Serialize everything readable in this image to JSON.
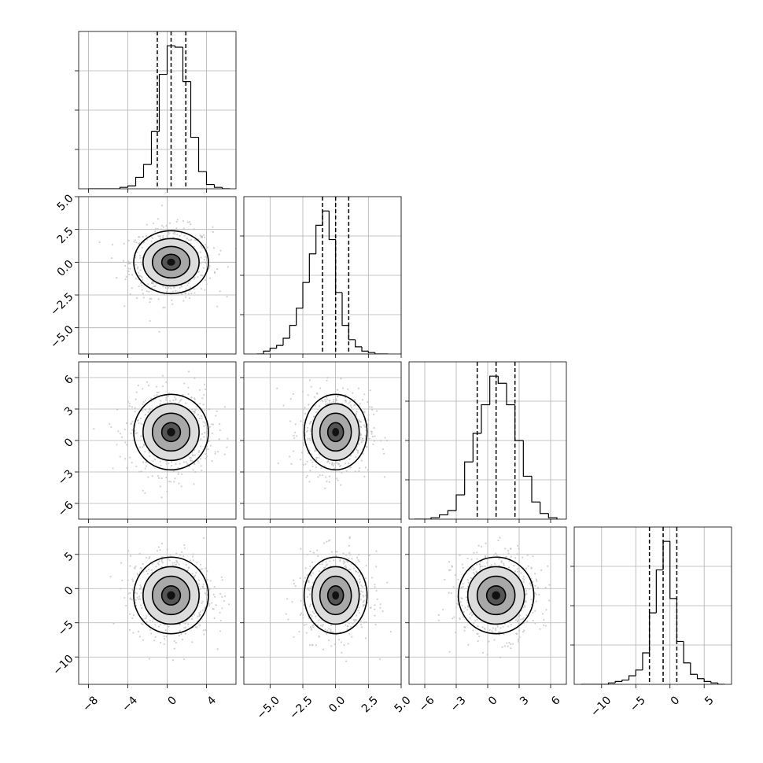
{
  "chart_data": {
    "type": "corner",
    "dimensions": 4,
    "grid": true,
    "colors": {
      "line": "#000000",
      "grid": "#b0b0b0",
      "scatter": "#bdbdbd"
    },
    "params": [
      {
        "range": [
          -9,
          7
        ],
        "ticks": [
          -8,
          -4,
          0,
          4
        ],
        "tick_labels": [
          "−8",
          "−4",
          "0",
          "4"
        ],
        "hist_edges": [
          -8,
          -7.2,
          -6.4,
          -5.6,
          -4.8,
          -4,
          -3.2,
          -2.4,
          -1.6,
          -0.8,
          0,
          0.8,
          1.6,
          2.4,
          3.2,
          4,
          4.8,
          5.6,
          6.4
        ],
        "hist_values": [
          0,
          0,
          0,
          0,
          1,
          2,
          8,
          17,
          40,
          80,
          100,
          99,
          75,
          36,
          12,
          3,
          1,
          0
        ],
        "quantiles": [
          -1.0,
          0.4,
          1.9
        ],
        "center": 0.4,
        "spread": 1.9
      },
      {
        "range": [
          -7,
          5
        ],
        "ticks": [
          -5,
          -2.5,
          0,
          2.5,
          5
        ],
        "tick_labels": [
          "−5.0",
          "−2.5",
          "0.0",
          "2.5",
          "5.0"
        ],
        "hist_edges": [
          -6,
          -5.5,
          -5,
          -4.5,
          -4,
          -3.5,
          -3,
          -2.5,
          -2,
          -1.5,
          -1,
          -0.5,
          0,
          0.5,
          1,
          1.5,
          2,
          2.5,
          3,
          3.5,
          4
        ],
        "hist_values": [
          0,
          2,
          4,
          6,
          11,
          20,
          32,
          50,
          70,
          90,
          100,
          80,
          43,
          20,
          10,
          5,
          2,
          1,
          0,
          0
        ],
        "quantiles": [
          -1.0,
          0.0,
          1.0
        ],
        "center": 0.0,
        "spread": 1.2
      },
      {
        "range": [
          -7.5,
          7.5
        ],
        "ticks": [
          -6,
          -3,
          0,
          3,
          6
        ],
        "tick_labels": [
          "−6",
          "−3",
          "0",
          "3",
          "6"
        ],
        "hist_edges": [
          -7,
          -6.2,
          -5.4,
          -4.6,
          -3.8,
          -3,
          -2.2,
          -1.4,
          -0.6,
          0.2,
          1,
          1.8,
          2.6,
          3.4,
          4.2,
          5,
          5.8,
          6.6
        ],
        "hist_values": [
          0,
          0,
          1,
          3,
          6,
          17,
          40,
          60,
          80,
          100,
          95,
          80,
          55,
          30,
          12,
          4,
          1
        ],
        "quantiles": [
          -1.0,
          0.8,
          2.6
        ],
        "center": 0.8,
        "spread": 1.8
      },
      {
        "range": [
          -14,
          9
        ],
        "ticks": [
          -10,
          -5,
          0,
          5
        ],
        "tick_labels": [
          "−10",
          "−5",
          "0",
          "5"
        ],
        "hist_edges": [
          -13,
          -12,
          -11,
          -10,
          -9,
          -8,
          -7,
          -6,
          -5,
          -4,
          -3,
          -2,
          -1,
          0,
          1,
          2,
          3,
          4,
          5,
          6,
          7,
          8
        ],
        "hist_values": [
          0,
          0,
          0,
          0,
          1,
          2,
          3,
          6,
          10,
          22,
          50,
          80,
          100,
          60,
          30,
          15,
          7,
          4,
          2,
          1,
          0
        ],
        "quantiles": [
          -3.0,
          -1.0,
          1.0
        ],
        "center": -1.0,
        "spread": 2.8
      }
    ]
  }
}
